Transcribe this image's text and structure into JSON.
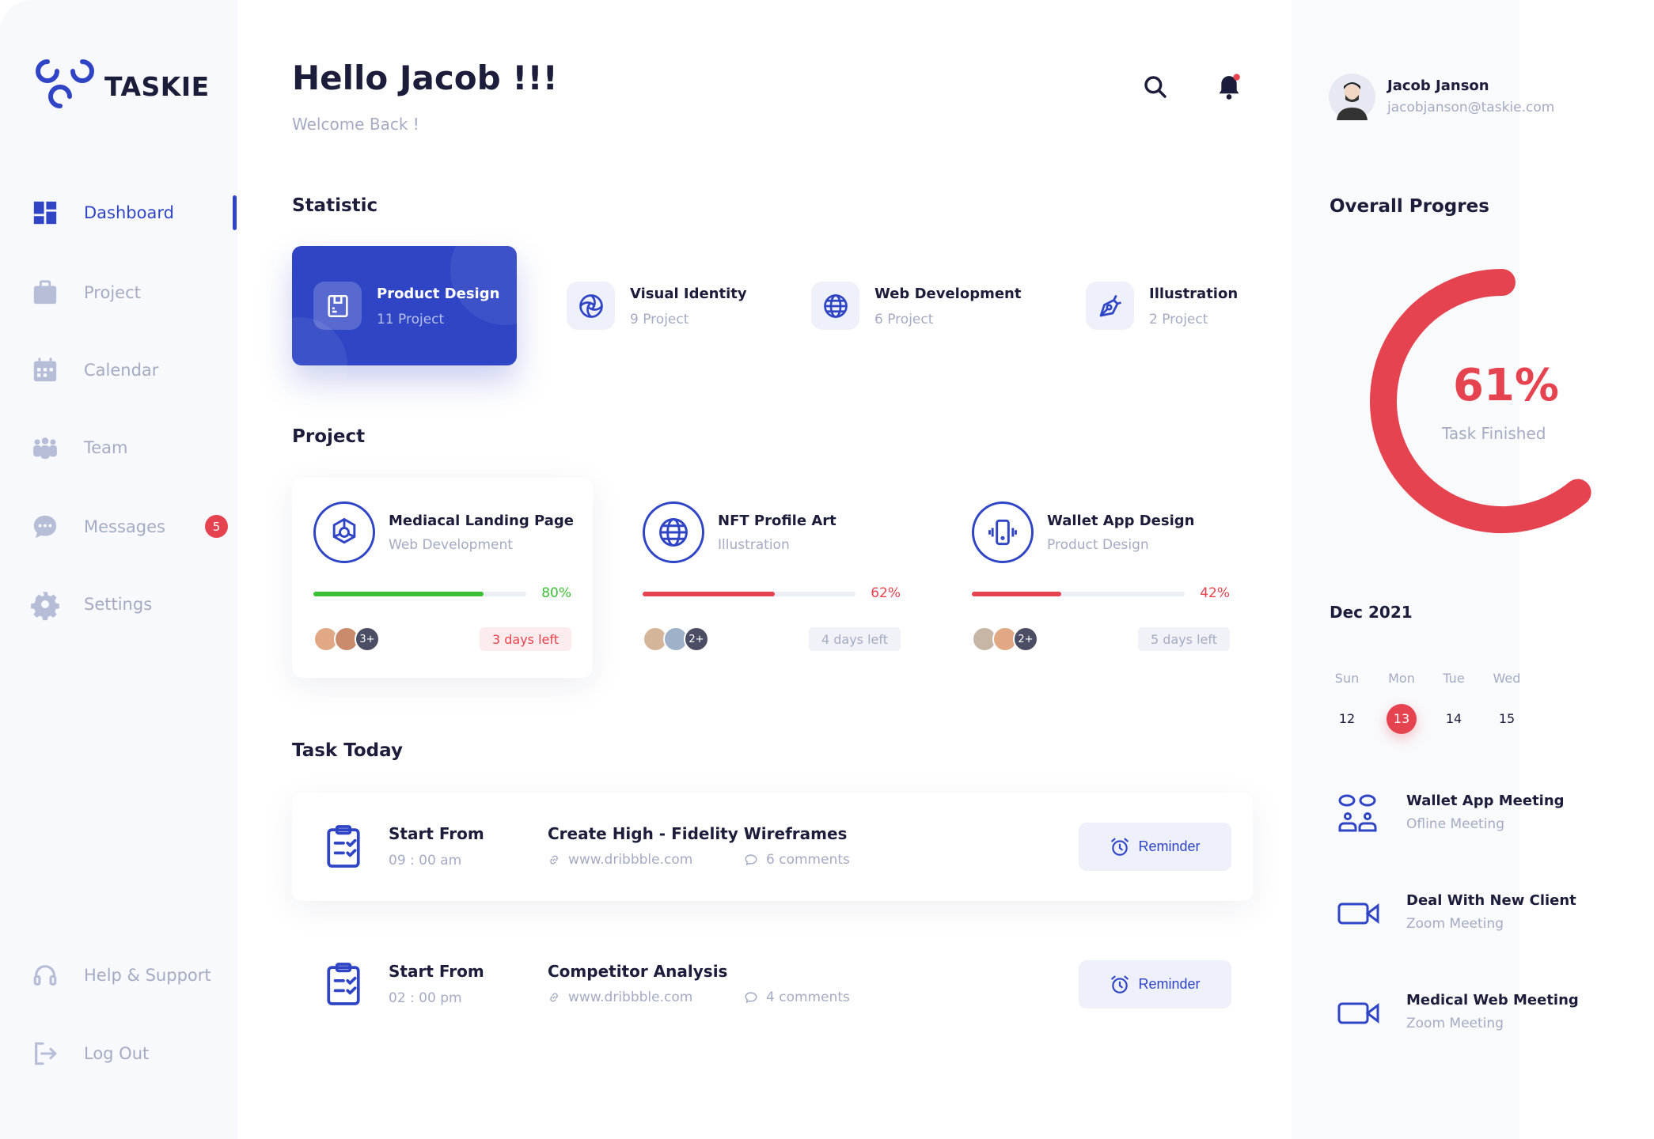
{
  "app": {
    "name": "TASKIE"
  },
  "colors": {
    "accent": "#2f45c5",
    "danger": "#e5434f",
    "success": "#3bbf33",
    "muted": "#a4abc3"
  },
  "sidebar": {
    "items": [
      {
        "label": "Dashboard",
        "icon": "grid-icon",
        "active": true
      },
      {
        "label": "Project",
        "icon": "briefcase-icon"
      },
      {
        "label": "Calendar",
        "icon": "calendar-icon"
      },
      {
        "label": "Team",
        "icon": "team-icon"
      },
      {
        "label": "Messages",
        "icon": "chat-icon",
        "badge": "5"
      },
      {
        "label": "Settings",
        "icon": "gear-icon"
      }
    ],
    "bottom": [
      {
        "label": "Help & Support",
        "icon": "headset-icon"
      },
      {
        "label": "Log Out",
        "icon": "logout-icon"
      }
    ]
  },
  "header": {
    "greeting": "Hello Jacob !!!",
    "subtitle": "Welcome Back !"
  },
  "user": {
    "name": "Jacob Janson",
    "email": "jacobjanson@taskie.com"
  },
  "statistic": {
    "title": "Statistic",
    "items": [
      {
        "title": "Product Design",
        "count": "11 Project",
        "icon": "design-icon",
        "active": true
      },
      {
        "title": "Visual Identity",
        "count": "9 Project",
        "icon": "spiral-icon"
      },
      {
        "title": "Web Development",
        "count": "6 Project",
        "icon": "globe-icon"
      },
      {
        "title": "Illustration",
        "count": "2 Project",
        "icon": "pen-icon"
      }
    ]
  },
  "projects": {
    "title": "Project",
    "items": [
      {
        "title": "Mediacal Landing Page",
        "category": "Web Development",
        "progress": 80,
        "progress_label": "80%",
        "extra_members": "3+",
        "due": "3 days left",
        "color": "#3bbf33"
      },
      {
        "title": "NFT Profile Art",
        "category": "Illustration",
        "progress": 62,
        "progress_label": "62%",
        "extra_members": "2+",
        "due": "4 days left",
        "color": "#e5434f"
      },
      {
        "title": "Wallet App Design",
        "category": "Product Design",
        "progress": 42,
        "progress_label": "42%",
        "extra_members": "2+",
        "due": "5 days left",
        "color": "#e5434f"
      }
    ]
  },
  "tasks": {
    "title": "Task Today",
    "items": [
      {
        "start_label": "Start From",
        "time": "09 : 00 am",
        "title": "Create High - Fidelity Wireframes",
        "link": "www.dribbble.com",
        "comments": "6 comments",
        "button": "Reminder"
      },
      {
        "start_label": "Start From",
        "time": "02 : 00 pm",
        "title": "Competitor Analysis",
        "link": "www.dribbble.com",
        "comments": "4 comments",
        "button": "Reminder"
      }
    ]
  },
  "overall": {
    "title": "Overall Progres",
    "percent": 61,
    "percent_label": "61%",
    "caption": "Task Finished"
  },
  "calendar": {
    "month": "Dec 2021",
    "days": [
      {
        "wd": "Sun",
        "d": "12"
      },
      {
        "wd": "Mon",
        "d": "13",
        "selected": true
      },
      {
        "wd": "Tue",
        "d": "14"
      },
      {
        "wd": "Wed",
        "d": "15"
      }
    ]
  },
  "meetings": [
    {
      "title": "Wallet App Meeting",
      "type": "Ofline Meeting",
      "icon": "meeting-icon"
    },
    {
      "title": "Deal With New Client",
      "type": "Zoom Meeting",
      "icon": "video-icon"
    },
    {
      "title": "Medical Web Meeting",
      "type": "Zoom Meeting",
      "icon": "video-icon"
    }
  ]
}
